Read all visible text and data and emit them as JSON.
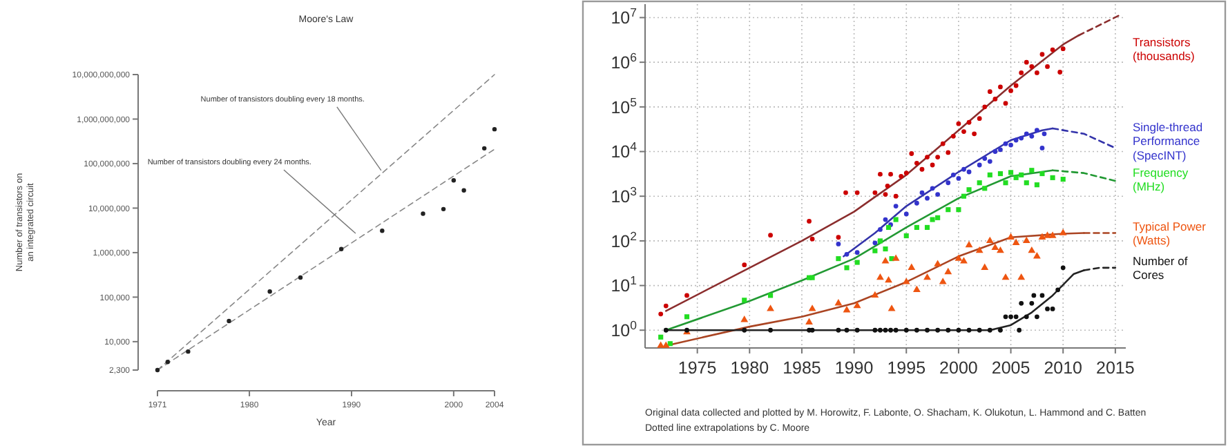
{
  "chart_data": [
    {
      "type": "scatter",
      "title": "Moore's Law",
      "xlabel": "Year",
      "ylabel": "Number of transistors on an integrated circuit",
      "log": true,
      "xlim": [
        1971,
        2004
      ],
      "xticks": [
        1971,
        1980,
        1990,
        2000,
        2004
      ],
      "ylim": [
        2300,
        10000000000
      ],
      "yticks": [
        {
          "value": 2300,
          "label": "2,300"
        },
        {
          "value": 10000,
          "label": "10,000"
        },
        {
          "value": 100000,
          "label": "100,000"
        },
        {
          "value": 1000000,
          "label": "1,000,000"
        },
        {
          "value": 10000000,
          "label": "10,000,000"
        },
        {
          "value": 100000000,
          "label": "100,000,000"
        },
        {
          "value": 1000000000,
          "label": "1,000,000,000"
        },
        {
          "value": 10000000000,
          "label": "10,000,000,000"
        }
      ],
      "series": [
        {
          "type": "scatter",
          "marker": "circle",
          "color": "#222222",
          "x": [
            1971,
            1972,
            1974,
            1978,
            1982,
            1985,
            1989,
            1993,
            1997,
            1999,
            2000,
            2001,
            2003,
            2004
          ],
          "values": [
            2300,
            3500,
            6000,
            29000,
            134000,
            275000,
            1200000,
            3100000,
            7500000,
            9500000,
            42000000,
            25000000,
            220000000,
            592000000
          ]
        },
        {
          "type": "line",
          "line_style": "dashed",
          "color": "#888888",
          "x": [
            1971,
            2004
          ],
          "values": [
            2300,
            10000000000
          ]
        },
        {
          "type": "line",
          "line_style": "dashed",
          "color": "#888888",
          "x": [
            1971,
            2004
          ],
          "values": [
            2300,
            210000000
          ]
        }
      ],
      "annotations": [
        {
          "text": "Number of transistors doubling every 18 months.",
          "x": 1992.9,
          "y": 70000000
        },
        {
          "text": "Number of transistors doubling every 24 months.",
          "x": 1990.4,
          "y": 2700000
        }
      ]
    },
    {
      "type": "scatter",
      "log": true,
      "grid": true,
      "legend": "right",
      "xlim": [
        1970,
        2016
      ],
      "xticks": [
        1975,
        1980,
        1985,
        1990,
        1995,
        2000,
        2005,
        2010,
        2015
      ],
      "ylim": [
        0.4,
        20000000
      ],
      "yticks": [
        {
          "value": 1,
          "label": "10$^{0}$"
        },
        {
          "value": 10,
          "label": "10$^{1}$"
        },
        {
          "value": 100,
          "label": "10$^{2}$"
        },
        {
          "value": 1000,
          "label": "10$^{3}$"
        },
        {
          "value": 10000,
          "label": "10$^{4}$"
        },
        {
          "value": 100000,
          "label": "10$^{5}$"
        },
        {
          "value": 1000000,
          "label": "10$^{6}$"
        },
        {
          "value": 10000000,
          "label": "10$^{7}$"
        }
      ],
      "series": [
        {
          "type": "line",
          "line_style": "solid",
          "color": "#8b2d2d",
          "x": [
            1972,
            1980,
            1985,
            1990,
            1995,
            2000,
            2005,
            2010,
            2011.5
          ],
          "values": [
            2.7,
            25,
            100,
            450,
            3000,
            30000,
            300000,
            2500000,
            4000000
          ]
        },
        {
          "type": "line",
          "line_style": "dashed",
          "color": "#8b2d2d",
          "x": [
            2011.5,
            2015.3
          ],
          "values": [
            4000000,
            11000000
          ]
        },
        {
          "type": "line",
          "line_style": "solid",
          "color": "#3333aa",
          "x": [
            1989,
            1992,
            1995,
            2000,
            2005,
            2008,
            2009
          ],
          "values": [
            45,
            150,
            600,
            3500,
            18000,
            30000,
            33000
          ]
        },
        {
          "type": "line",
          "line_style": "dashed",
          "color": "#3333aa",
          "x": [
            2009,
            2012,
            2015
          ],
          "values": [
            33000,
            25000,
            12000
          ]
        },
        {
          "type": "line",
          "line_style": "solid",
          "color": "#229933",
          "x": [
            1972,
            1980,
            1985,
            1990,
            1995,
            2000,
            2005,
            2009
          ],
          "values": [
            1,
            4.5,
            13,
            40,
            200,
            900,
            2800,
            3800
          ]
        },
        {
          "type": "line",
          "line_style": "dashed",
          "color": "#229933",
          "x": [
            2009,
            2012,
            2015
          ],
          "values": [
            3800,
            3300,
            2200
          ]
        },
        {
          "type": "line",
          "line_style": "solid",
          "color": "#aa4422",
          "x": [
            1972,
            1980,
            1985,
            1990,
            1995,
            2000,
            2005,
            2010,
            2012
          ],
          "values": [
            0.45,
            1.2,
            2,
            4,
            12,
            45,
            120,
            145,
            150
          ]
        },
        {
          "type": "line",
          "line_style": "dashed",
          "color": "#aa4422",
          "x": [
            2012,
            2015
          ],
          "values": [
            150,
            150
          ]
        },
        {
          "type": "line",
          "line_style": "solid",
          "color": "#222222",
          "x": [
            1972,
            2003,
            2005,
            2007,
            2009,
            2011,
            2012
          ],
          "values": [
            1,
            1,
            1.3,
            2.5,
            6,
            18,
            22
          ]
        },
        {
          "type": "line",
          "line_style": "dashed",
          "color": "#222222",
          "x": [
            2012,
            2013.5,
            2015
          ],
          "values": [
            22,
            25,
            25
          ]
        },
        {
          "type": "scatter",
          "name": "Transistors (thousands)",
          "marker": "circle",
          "color": "#cc0000",
          "x": [
            1971.5,
            1972,
            1974,
            1979.5,
            1982,
            1985.7,
            1986,
            1988.5,
            1989.2,
            1990.3,
            1992,
            1992.5,
            1993,
            1993.2,
            1993.5,
            1994,
            1994.5,
            1995,
            1995.5,
            1996,
            1996.5,
            1997,
            1997.5,
            1998,
            1998.5,
            1999,
            1999.5,
            2000,
            2000.5,
            2001,
            2001.5,
            2002,
            2002.5,
            2003,
            2003.5,
            2004,
            2004.5,
            2005,
            2005.5,
            2006,
            2006.5,
            2007,
            2007.5,
            2008,
            2008.5,
            2009,
            2009.7,
            2010
          ],
          "values": [
            2.3,
            3.5,
            6,
            29,
            134,
            275,
            110,
            120,
            1200,
            1200,
            1200,
            3100,
            1100,
            1700,
            3100,
            1000,
            2800,
            3300,
            9000,
            5500,
            4000,
            7500,
            5000,
            7500,
            15000,
            9500,
            22000,
            42000,
            28000,
            45000,
            25000,
            55000,
            100000,
            220000,
            150000,
            280000,
            120000,
            230000,
            300000,
            580000,
            1000000,
            800000,
            580000,
            1500000,
            800000,
            1900000,
            600000,
            2000000
          ]
        },
        {
          "type": "scatter",
          "name": "Single-thread Performance (SpecINT)",
          "marker": "circle",
          "color": "#3333cc",
          "x": [
            1988.5,
            1989.3,
            1990.3,
            1992,
            1992.5,
            1993,
            1993.5,
            1994,
            1995,
            1996,
            1996.5,
            1997,
            1997.5,
            1998,
            1999,
            1999.5,
            2000,
            2000.5,
            2001,
            2002,
            2002.5,
            2003,
            2003.5,
            2004,
            2004.5,
            2005,
            2005.5,
            2006,
            2006.5,
            2007,
            2007.5,
            2008,
            2008.2
          ],
          "values": [
            85,
            50,
            55,
            90,
            180,
            300,
            230,
            600,
            400,
            700,
            1200,
            900,
            1500,
            1100,
            2000,
            3000,
            2500,
            4000,
            3500,
            5000,
            7000,
            6000,
            10000,
            11000,
            15000,
            14000,
            18000,
            20000,
            25000,
            22000,
            30000,
            12000,
            25000
          ]
        },
        {
          "type": "scatter",
          "name": "Frequency (MHz)",
          "marker": "square",
          "color": "#22dd22",
          "x": [
            1971.5,
            1972.4,
            1974,
            1979.5,
            1982,
            1985.7,
            1986,
            1988.5,
            1989.3,
            1990.3,
            1992,
            1992.5,
            1993,
            1993.3,
            1993.6,
            1994,
            1995,
            1996,
            1997,
            1997.5,
            1998,
            1999,
            2000,
            2000.5,
            2001,
            2002,
            2002.5,
            2003,
            2004,
            2004.5,
            2005,
            2005.5,
            2006,
            2006.5,
            2007,
            2007.5,
            2008,
            2009,
            2010
          ],
          "values": [
            0.7,
            0.5,
            2,
            4.7,
            6,
            15,
            15,
            40,
            25,
            33,
            60,
            100,
            66,
            200,
            40,
            300,
            130,
            200,
            200,
            300,
            330,
            500,
            500,
            1000,
            1400,
            2000,
            1500,
            3000,
            3200,
            2000,
            3400,
            2600,
            3000,
            2000,
            3800,
            1800,
            3200,
            2600,
            2400
          ]
        },
        {
          "type": "scatter",
          "name": "Typical Power (Watts)",
          "marker": "triangle",
          "color": "#ee5511",
          "x": [
            1971.5,
            1972,
            1974,
            1979.5,
            1982,
            1985.7,
            1986,
            1988.5,
            1989.3,
            1990.3,
            1992,
            1992.5,
            1993,
            1993.3,
            1993.6,
            1994,
            1995,
            1995.5,
            1996,
            1997,
            1998,
            1998.5,
            1999,
            2000,
            2000.5,
            2001,
            2002,
            2002.5,
            2003,
            2003.5,
            2004,
            2004.5,
            2005,
            2005.5,
            2006,
            2006.5,
            2007,
            2007.5,
            2008,
            2008.5,
            2009,
            2010
          ],
          "values": [
            0.45,
            0.45,
            0.9,
            1.7,
            3,
            1.5,
            3,
            4,
            2.8,
            3.5,
            6,
            15,
            35,
            13,
            3,
            40,
            12,
            25,
            8,
            15,
            30,
            12,
            20,
            40,
            35,
            80,
            60,
            25,
            100,
            70,
            60,
            15,
            120,
            90,
            15,
            100,
            60,
            45,
            120,
            130,
            130,
            150
          ]
        },
        {
          "type": "scatter",
          "name": "Number of Cores",
          "marker": "circle",
          "color": "#111111",
          "x": [
            1972,
            1974,
            1979.5,
            1982,
            1985.7,
            1986,
            1988.5,
            1989.3,
            1990.3,
            1992,
            1992.5,
            1993,
            1993.5,
            1994,
            1995,
            1996,
            1997,
            1998,
            1999,
            2000,
            2001,
            2002,
            2003,
            2004,
            2004.5,
            2005,
            2005.5,
            2005.8,
            2006,
            2006.5,
            2007,
            2007.2,
            2007.5,
            2008,
            2008.5,
            2009,
            2009.5,
            2010
          ],
          "values": [
            1,
            1,
            1,
            1,
            1,
            1,
            1,
            1,
            1,
            1,
            1,
            1,
            1,
            1,
            1,
            1,
            1,
            1,
            1,
            1,
            1,
            1,
            1,
            1,
            2,
            2,
            2,
            1,
            4,
            2,
            4,
            6,
            2,
            6,
            3,
            3,
            8,
            25
          ]
        }
      ],
      "annotations": [
        "Original data collected and plotted by M. Horowitz, F. Labonte, O. Shacham, K. Olukotun, L. Hammond and C. Batten",
        "Dotted line extrapolations by C. Moore"
      ]
    }
  ]
}
